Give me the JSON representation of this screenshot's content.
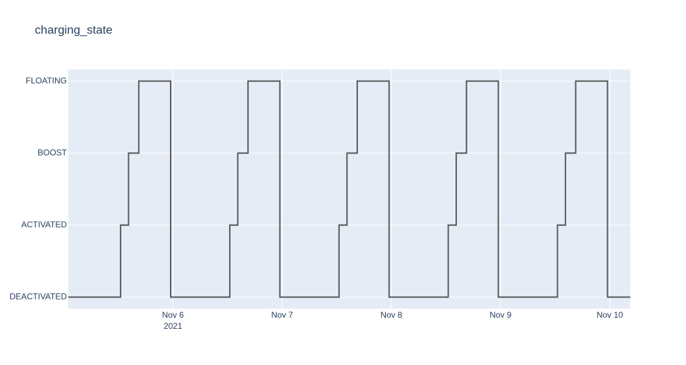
{
  "chart_data": {
    "type": "line",
    "title": "charging_state",
    "line_shape": "hv",
    "y_categories": [
      "DEACTIVATED",
      "ACTIVATED",
      "BOOST",
      "FLOATING"
    ],
    "ylim": [
      -0.16,
      3.16
    ],
    "xlim": [
      "2021-11-05T01:00",
      "2021-11-10T04:30"
    ],
    "xticks": [
      {
        "value": "2021-11-06T00:00",
        "label": "Nov 6",
        "sublabel": "2021"
      },
      {
        "value": "2021-11-07T00:00",
        "label": "Nov 7"
      },
      {
        "value": "2021-11-08T00:00",
        "label": "Nov 8"
      },
      {
        "value": "2021-11-09T00:00",
        "label": "Nov 9"
      },
      {
        "value": "2021-11-10T00:00",
        "label": "Nov 10"
      }
    ],
    "grid": true,
    "plot_background": "#e5ecf6",
    "series": [
      {
        "color": "#5a5a5a",
        "x": [
          "2021-11-05T01:00",
          "2021-11-05T12:30",
          "2021-11-05T14:15",
          "2021-11-05T16:30",
          "2021-11-05T23:30",
          "2021-11-06T12:30",
          "2021-11-06T14:15",
          "2021-11-06T16:30",
          "2021-11-06T23:30",
          "2021-11-07T12:30",
          "2021-11-07T14:15",
          "2021-11-07T16:30",
          "2021-11-07T23:30",
          "2021-11-08T12:30",
          "2021-11-08T14:15",
          "2021-11-08T16:30",
          "2021-11-08T23:30",
          "2021-11-09T12:30",
          "2021-11-09T14:15",
          "2021-11-09T16:30",
          "2021-11-09T23:30",
          "2021-11-10T04:30"
        ],
        "values": [
          "DEACTIVATED",
          "ACTIVATED",
          "BOOST",
          "FLOATING",
          "DEACTIVATED",
          "ACTIVATED",
          "BOOST",
          "FLOATING",
          "DEACTIVATED",
          "ACTIVATED",
          "BOOST",
          "FLOATING",
          "DEACTIVATED",
          "ACTIVATED",
          "BOOST",
          "FLOATING",
          "DEACTIVATED",
          "ACTIVATED",
          "BOOST",
          "FLOATING",
          "DEACTIVATED",
          "DEACTIVATED"
        ]
      }
    ]
  }
}
